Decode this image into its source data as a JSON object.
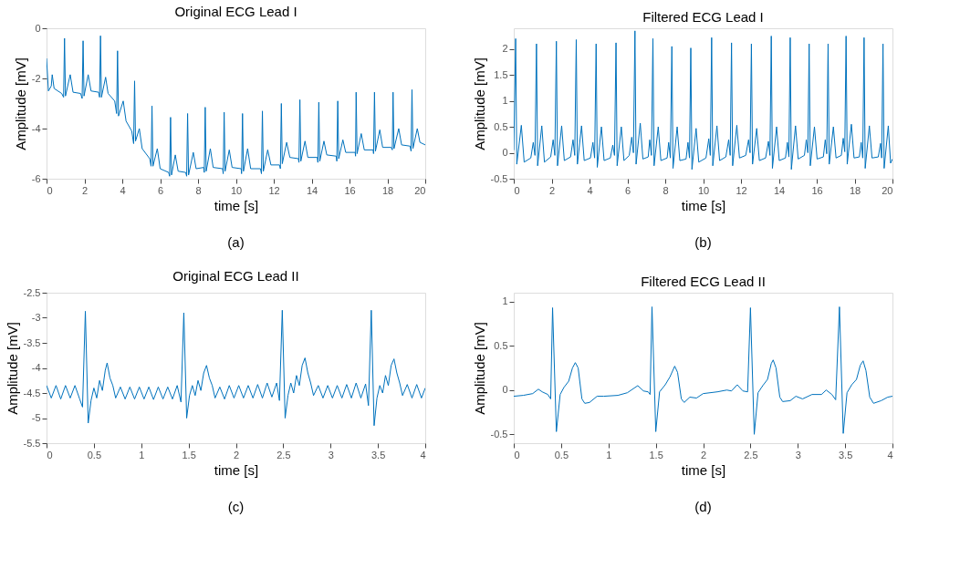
{
  "chart_data": [
    {
      "type": "line",
      "title": "Original ECG Lead I",
      "xlabel": "time [s]",
      "ylabel": "Amplitude [mV]",
      "annotations": [
        "(a)"
      ],
      "xlim": [
        0,
        20
      ],
      "ylim": [
        -6,
        0
      ],
      "xticks": [
        0,
        2,
        4,
        6,
        8,
        10,
        12,
        14,
        16,
        18,
        20
      ],
      "yticks": [
        -6,
        -4,
        -2,
        0
      ],
      "grid": false,
      "x": [
        0,
        0.1,
        0.25,
        0.3,
        0.4,
        0.8,
        0.9,
        0.95,
        1.0,
        1.25,
        1.4,
        1.8,
        1.88,
        1.93,
        1.98,
        2.2,
        2.35,
        2.75,
        2.8,
        2.85,
        2.9,
        3.12,
        3.25,
        3.6,
        3.7,
        3.75,
        3.8,
        4.05,
        4.2,
        4.5,
        4.6,
        4.65,
        4.7,
        4.9,
        5.05,
        5.45,
        5.52,
        5.57,
        5.62,
        5.85,
        6.0,
        6.45,
        6.5,
        6.55,
        6.6,
        6.8,
        6.95,
        7.35,
        7.4,
        7.45,
        7.5,
        7.75,
        7.9,
        8.3,
        8.33,
        8.38,
        8.43,
        8.65,
        8.8,
        9.3,
        9.33,
        9.38,
        9.43,
        9.65,
        9.8,
        10.28,
        10.3,
        10.35,
        10.4,
        10.62,
        10.78,
        11.3,
        11.35,
        11.4,
        11.45,
        11.68,
        11.85,
        12.3,
        12.35,
        12.4,
        12.45,
        12.68,
        12.85,
        13.3,
        13.33,
        13.38,
        13.43,
        13.65,
        13.8,
        14.3,
        14.33,
        14.38,
        14.43,
        14.65,
        14.8,
        15.3,
        15.33,
        15.38,
        15.43,
        15.65,
        15.8,
        16.3,
        16.32,
        16.35,
        16.4,
        16.62,
        16.78,
        17.25,
        17.27,
        17.32,
        17.37,
        17.6,
        17.75,
        18.2,
        18.26,
        18.3,
        18.35,
        18.6,
        18.75,
        19.2,
        19.25,
        19.3,
        19.35,
        19.58,
        19.72,
        20
      ],
      "series": [
        {
          "color": "#0072bd",
          "values": [
            -1.2,
            -2.5,
            -2.3,
            -1.85,
            -2.4,
            -2.6,
            -2.75,
            -0.4,
            -2.7,
            -1.85,
            -2.55,
            -2.6,
            -2.8,
            -0.5,
            -2.7,
            -1.85,
            -2.5,
            -2.55,
            -2.75,
            -0.3,
            -2.75,
            -1.95,
            -2.6,
            -2.9,
            -3.4,
            -0.9,
            -3.5,
            -2.9,
            -3.7,
            -4.1,
            -4.6,
            -2.1,
            -4.5,
            -4.0,
            -4.8,
            -5.2,
            -5.5,
            -3.1,
            -5.5,
            -4.8,
            -5.6,
            -5.75,
            -5.9,
            -3.55,
            -5.85,
            -5.05,
            -5.7,
            -5.75,
            -5.9,
            -3.4,
            -5.85,
            -4.95,
            -5.6,
            -5.55,
            -5.75,
            -3.15,
            -5.7,
            -4.8,
            -5.55,
            -5.6,
            -5.8,
            -3.35,
            -5.7,
            -4.85,
            -5.55,
            -5.6,
            -5.8,
            -3.4,
            -5.7,
            -4.8,
            -5.6,
            -5.6,
            -5.8,
            -3.3,
            -5.7,
            -4.85,
            -5.45,
            -5.45,
            -5.6,
            -3.0,
            -5.4,
            -4.55,
            -5.15,
            -5.2,
            -5.35,
            -2.85,
            -5.3,
            -4.5,
            -5.15,
            -5.15,
            -5.35,
            -2.95,
            -5.3,
            -4.5,
            -5.05,
            -5.1,
            -5.3,
            -2.9,
            -5.2,
            -4.45,
            -4.95,
            -4.95,
            -5.1,
            -2.55,
            -5.0,
            -4.2,
            -4.85,
            -4.85,
            -5.0,
            -2.55,
            -4.9,
            -4.05,
            -4.75,
            -4.75,
            -4.85,
            -2.55,
            -4.8,
            -4.0,
            -4.65,
            -4.7,
            -4.9,
            -2.45,
            -4.8,
            -4.0,
            -4.55,
            -4.65
          ]
        }
      ]
    },
    {
      "type": "line",
      "title": "Filtered ECG Lead I",
      "xlabel": "time [s]",
      "ylabel": "Amplitude [mV]",
      "annotations": [
        "(b)"
      ],
      "xlim": [
        0,
        20
      ],
      "ylim": [
        -0.5,
        2.4
      ],
      "xticks": [
        0,
        2,
        4,
        6,
        8,
        10,
        12,
        14,
        16,
        18,
        20
      ],
      "yticks": [
        -0.5,
        0,
        0.5,
        1,
        1.5,
        2
      ],
      "grid": false,
      "x": [
        0,
        0.1,
        0.16,
        0.4,
        0.55,
        0.9,
        1.03,
        1.12,
        1.2,
        1.26,
        1.48,
        1.62,
        1.95,
        2.08,
        2.17,
        2.25,
        2.31,
        2.53,
        2.67,
        3.0,
        3.13,
        3.22,
        3.3,
        3.36,
        3.58,
        3.72,
        4.05,
        4.18,
        4.27,
        4.35,
        4.41,
        4.63,
        4.77,
        5.1,
        5.23,
        5.32,
        5.4,
        5.46,
        5.68,
        5.82,
        6.1,
        6.23,
        6.32,
        6.4,
        6.46,
        6.68,
        6.82,
        7.1,
        7.18,
        7.27,
        7.35,
        7.41,
        7.63,
        7.77,
        8.1,
        8.18,
        8.27,
        8.35,
        8.41,
        8.63,
        8.77,
        9.1,
        9.2,
        9.28,
        9.35,
        9.41,
        9.63,
        9.77,
        10.15,
        10.3,
        10.38,
        10.45,
        10.51,
        10.73,
        10.87,
        11.2,
        11.35,
        11.43,
        11.5,
        11.56,
        11.78,
        11.92,
        12.25,
        12.4,
        12.48,
        12.55,
        12.61,
        12.83,
        12.97,
        13.3,
        13.45,
        13.53,
        13.6,
        13.66,
        13.88,
        14.02,
        14.35,
        14.45,
        14.53,
        14.6,
        14.66,
        14.88,
        15.02,
        15.35,
        15.45,
        15.53,
        15.6,
        15.66,
        15.88,
        16.02,
        16.35,
        16.45,
        16.53,
        16.6,
        16.66,
        16.88,
        17.02,
        17.3,
        17.4,
        17.48,
        17.55,
        17.61,
        17.83,
        17.97,
        18.25,
        18.35,
        18.43,
        18.5,
        18.56,
        18.78,
        18.92,
        19.25,
        19.37,
        19.43,
        19.5,
        19.56,
        19.78,
        19.9,
        20
      ],
      "series": [
        {
          "color": "#0072bd",
          "values": [
            0.05,
            2.2,
            -0.22,
            0.53,
            -0.18,
            -0.1,
            0.2,
            -0.05,
            2.1,
            -0.25,
            0.52,
            -0.18,
            -0.08,
            0.25,
            -0.05,
            2.15,
            -0.25,
            0.52,
            -0.15,
            -0.08,
            0.25,
            -0.05,
            2.18,
            -0.22,
            0.52,
            -0.15,
            -0.1,
            0.2,
            -0.1,
            2.1,
            -0.28,
            0.5,
            -0.15,
            -0.1,
            0.15,
            -0.05,
            2.12,
            -0.25,
            0.5,
            -0.15,
            -0.05,
            0.3,
            0.0,
            2.35,
            -0.22,
            0.57,
            -0.12,
            -0.08,
            0.25,
            -0.05,
            2.2,
            -0.25,
            0.5,
            -0.15,
            -0.1,
            0.2,
            -0.1,
            2.05,
            -0.3,
            0.5,
            -0.15,
            -0.12,
            0.2,
            -0.1,
            2.02,
            -0.32,
            0.47,
            -0.18,
            -0.1,
            0.27,
            -0.05,
            2.22,
            -0.25,
            0.52,
            -0.15,
            -0.08,
            0.25,
            -0.05,
            2.12,
            -0.25,
            0.53,
            -0.1,
            -0.05,
            0.25,
            0.0,
            2.1,
            -0.22,
            0.47,
            -0.15,
            -0.1,
            0.22,
            -0.05,
            2.25,
            -0.3,
            0.5,
            -0.15,
            -0.1,
            0.2,
            -0.08,
            2.22,
            -0.32,
            0.52,
            -0.12,
            -0.05,
            0.25,
            0.0,
            2.1,
            -0.25,
            0.5,
            -0.12,
            -0.08,
            0.25,
            -0.02,
            2.1,
            -0.22,
            0.5,
            -0.1,
            -0.05,
            0.28,
            0.02,
            2.25,
            -0.22,
            0.55,
            -0.1,
            -0.08,
            0.2,
            -0.1,
            2.22,
            -0.3,
            0.52,
            -0.1,
            -0.08,
            0.18,
            -0.1,
            2.1,
            -0.3,
            0.52,
            -0.2,
            -0.12
          ]
        }
      ]
    },
    {
      "type": "line",
      "title": "Original ECG Lead II",
      "xlabel": "time [s]",
      "ylabel": "Amplitude [mV]",
      "annotations": [
        "(c)"
      ],
      "xlim": [
        0,
        4
      ],
      "ylim": [
        -5.5,
        -2.5
      ],
      "xticks": [
        0,
        0.5,
        1,
        1.5,
        2,
        2.5,
        3,
        3.5,
        4
      ],
      "yticks": [
        -5.5,
        -5,
        -4.5,
        -4,
        -3.5,
        -3,
        -2.5
      ],
      "grid": false,
      "x": [
        0,
        0.05,
        0.1,
        0.15,
        0.2,
        0.25,
        0.3,
        0.35,
        0.38,
        0.41,
        0.44,
        0.47,
        0.5,
        0.53,
        0.56,
        0.59,
        0.62,
        0.64,
        0.67,
        0.7,
        0.73,
        0.78,
        0.83,
        0.88,
        0.93,
        0.98,
        1.03,
        1.08,
        1.13,
        1.18,
        1.23,
        1.28,
        1.33,
        1.38,
        1.42,
        1.45,
        1.48,
        1.51,
        1.54,
        1.57,
        1.6,
        1.63,
        1.66,
        1.69,
        1.72,
        1.75,
        1.78,
        1.83,
        1.88,
        1.93,
        1.98,
        2.03,
        2.08,
        2.13,
        2.18,
        2.23,
        2.28,
        2.33,
        2.38,
        2.43,
        2.46,
        2.49,
        2.52,
        2.55,
        2.58,
        2.61,
        2.64,
        2.67,
        2.7,
        2.73,
        2.76,
        2.79,
        2.82,
        2.87,
        2.92,
        2.97,
        3.02,
        3.07,
        3.12,
        3.17,
        3.22,
        3.27,
        3.32,
        3.37,
        3.4,
        3.43,
        3.46,
        3.49,
        3.52,
        3.55,
        3.58,
        3.61,
        3.64,
        3.67,
        3.7,
        3.73,
        3.76,
        3.81,
        3.86,
        3.91,
        3.96,
        4.0
      ],
      "series": [
        {
          "color": "#0072bd",
          "values": [
            -4.35,
            -4.6,
            -4.35,
            -4.62,
            -4.35,
            -4.6,
            -4.35,
            -4.62,
            -4.78,
            -2.87,
            -5.1,
            -4.65,
            -4.4,
            -4.6,
            -4.25,
            -4.45,
            -4.05,
            -3.9,
            -4.2,
            -4.35,
            -4.6,
            -4.38,
            -4.62,
            -4.38,
            -4.62,
            -4.38,
            -4.62,
            -4.38,
            -4.63,
            -4.38,
            -4.62,
            -4.38,
            -4.62,
            -4.35,
            -4.68,
            -2.9,
            -5.0,
            -4.55,
            -4.35,
            -4.55,
            -4.25,
            -4.45,
            -4.1,
            -3.95,
            -4.2,
            -4.35,
            -4.6,
            -4.38,
            -4.62,
            -4.35,
            -4.6,
            -4.35,
            -4.6,
            -4.35,
            -4.6,
            -4.33,
            -4.6,
            -4.3,
            -4.58,
            -4.3,
            -4.65,
            -2.85,
            -5.0,
            -4.55,
            -4.3,
            -4.5,
            -4.15,
            -4.35,
            -3.95,
            -3.8,
            -4.1,
            -4.3,
            -4.55,
            -4.35,
            -4.6,
            -4.35,
            -4.6,
            -4.35,
            -4.6,
            -4.33,
            -4.6,
            -4.3,
            -4.6,
            -4.32,
            -4.75,
            -2.85,
            -5.15,
            -4.6,
            -4.35,
            -4.5,
            -4.15,
            -4.35,
            -3.95,
            -3.82,
            -4.1,
            -4.3,
            -4.55,
            -4.33,
            -4.6,
            -4.33,
            -4.6,
            -4.4
          ]
        }
      ]
    },
    {
      "type": "line",
      "title": "Filtered ECG Lead II",
      "xlabel": "time [s]",
      "ylabel": "Amplitude [mV]",
      "annotations": [
        "(d)"
      ],
      "xlim": [
        0,
        4
      ],
      "ylim": [
        -0.6,
        1.1
      ],
      "xticks": [
        0,
        0.5,
        1,
        1.5,
        2,
        2.5,
        3,
        3.5,
        4
      ],
      "yticks": [
        -0.5,
        0,
        0.5,
        1
      ],
      "grid": false,
      "x": [
        0,
        0.1,
        0.2,
        0.26,
        0.3,
        0.36,
        0.39,
        0.41,
        0.45,
        0.49,
        0.53,
        0.58,
        0.62,
        0.65,
        0.68,
        0.72,
        0.75,
        0.8,
        0.88,
        0.95,
        1.1,
        1.2,
        1.31,
        1.37,
        1.42,
        1.44,
        1.46,
        1.5,
        1.54,
        1.6,
        1.65,
        1.7,
        1.73,
        1.77,
        1.8,
        1.86,
        1.93,
        2.0,
        2.15,
        2.25,
        2.3,
        2.36,
        2.42,
        2.47,
        2.5,
        2.54,
        2.58,
        2.63,
        2.68,
        2.72,
        2.74,
        2.77,
        2.81,
        2.84,
        2.92,
        2.98,
        3.05,
        3.15,
        3.25,
        3.3,
        3.36,
        3.4,
        3.44,
        3.48,
        3.52,
        3.57,
        3.62,
        3.66,
        3.69,
        3.72,
        3.76,
        3.8,
        3.88,
        3.95,
        4.0
      ],
      "series": [
        {
          "color": "#0072bd",
          "values": [
            -0.07,
            -0.06,
            -0.04,
            0.01,
            -0.02,
            -0.05,
            -0.1,
            0.93,
            -0.47,
            -0.05,
            0.03,
            0.1,
            0.25,
            0.31,
            0.25,
            -0.1,
            -0.15,
            -0.14,
            -0.07,
            -0.07,
            -0.06,
            -0.03,
            0.05,
            -0.01,
            -0.02,
            -0.05,
            0.94,
            -0.47,
            -0.02,
            0.06,
            0.15,
            0.27,
            0.2,
            -0.1,
            -0.14,
            -0.08,
            -0.09,
            -0.04,
            -0.02,
            0.0,
            -0.01,
            0.06,
            -0.01,
            -0.02,
            0.93,
            -0.5,
            -0.03,
            0.05,
            0.12,
            0.3,
            0.34,
            0.25,
            -0.08,
            -0.13,
            -0.12,
            -0.07,
            -0.1,
            -0.05,
            -0.05,
            0.0,
            -0.05,
            -0.11,
            0.94,
            -0.49,
            -0.03,
            0.06,
            0.12,
            0.28,
            0.33,
            0.22,
            -0.08,
            -0.15,
            -0.12,
            -0.08,
            -0.07
          ]
        }
      ]
    }
  ]
}
